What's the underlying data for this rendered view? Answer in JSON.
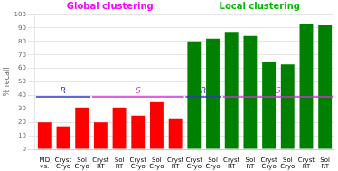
{
  "chart_data": {
    "type": "bar",
    "ylabel": "% recall",
    "categories": [
      "MD\nvs.",
      "Cryst\nCryo",
      "Sol\nCryo",
      "Cryst\nRT",
      "Sol\nRT",
      "Cryst\nCryo",
      "Sol\nCryo",
      "Cryst\nRT",
      "Cryst\nCryo",
      "Sol\nCryo",
      "Cryst\nRT",
      "Sol\nRT",
      "Cryst\nCryo",
      "Sol\nCryo",
      "Cryst\nRT",
      "Sol\nRT"
    ],
    "values": [
      20,
      17,
      31,
      20,
      31,
      25,
      35,
      23,
      80,
      82,
      87,
      84,
      65,
      63,
      93,
      92
    ],
    "colors": [
      "#ff0000",
      "#ff0000",
      "#ff0000",
      "#ff0000",
      "#ff0000",
      "#ff0000",
      "#ff0000",
      "#ff0000",
      "#008000",
      "#008000",
      "#008000",
      "#008000",
      "#008000",
      "#008000",
      "#008000",
      "#008000"
    ],
    "ylim": [
      0,
      100
    ],
    "yticks": [
      0,
      10,
      20,
      30,
      40,
      50,
      60,
      70,
      80,
      90,
      100
    ],
    "grid": true,
    "annotations": [
      {
        "text": "Global clustering",
        "color": "#ff00ff",
        "from": 0,
        "to": 7
      },
      {
        "text": "Local clustering",
        "color": "#00bb00",
        "from": 8,
        "to": 15
      }
    ],
    "lines": [
      {
        "label": "R",
        "value": 39,
        "color": "#3333cc",
        "from": 0,
        "to": 2
      },
      {
        "label": "S",
        "value": 39,
        "color": "#cc33cc",
        "from": 3,
        "to": 7
      },
      {
        "label": "R",
        "value": 39,
        "color": "#3333cc",
        "from": 8,
        "to": 9
      },
      {
        "label": "S",
        "value": 39,
        "color": "#cc33cc",
        "from": 10,
        "to": 15
      }
    ]
  }
}
